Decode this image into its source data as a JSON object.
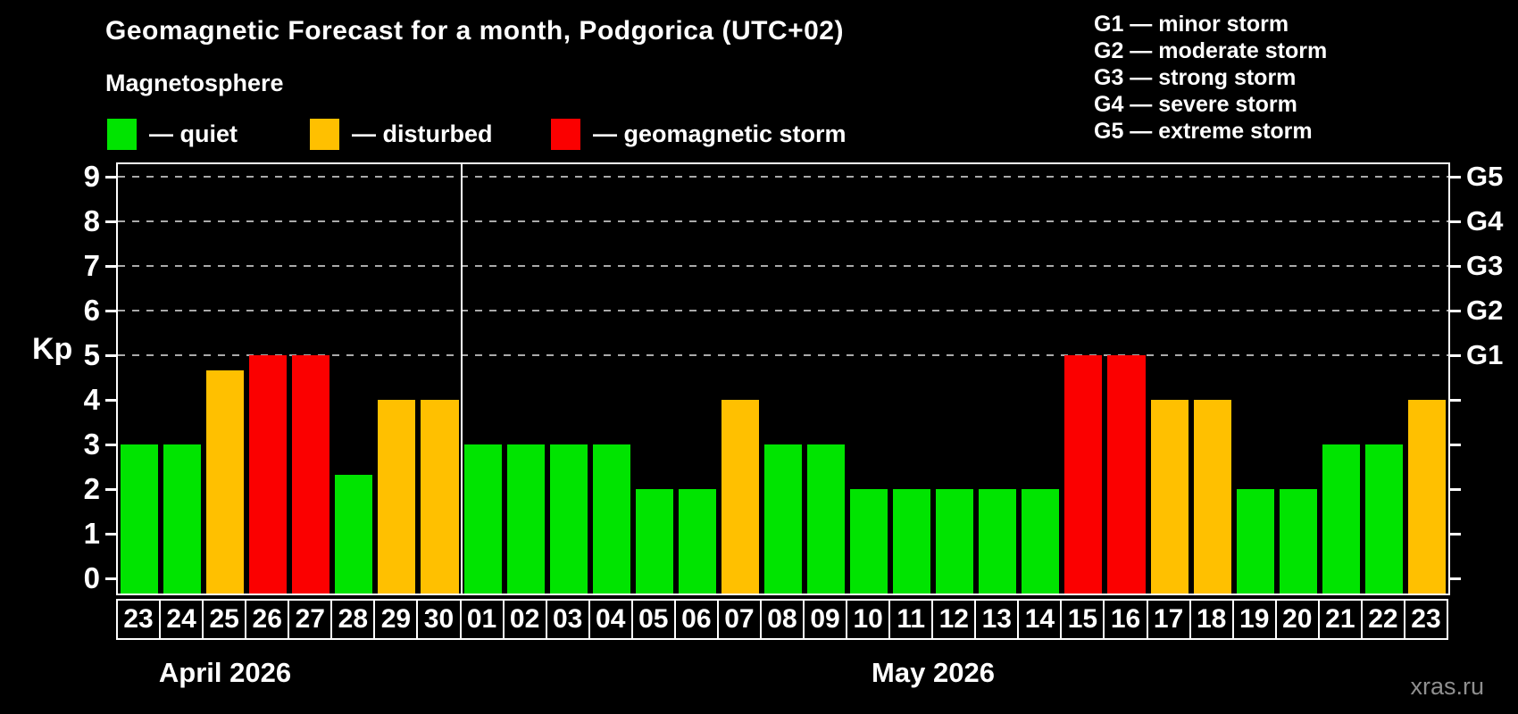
{
  "chart_data": {
    "type": "bar",
    "title": "Geomagnetic Forecast for a month, Podgorica (UTC+02)",
    "subtitle": "Magnetosphere",
    "watermark": "xras.ru",
    "kp_axis": {
      "label": "Kp",
      "min": 0,
      "max": 9,
      "ticks": [
        0,
        1,
        2,
        3,
        4,
        5,
        6,
        7,
        8,
        9
      ]
    },
    "g_axis": [
      {
        "code": "G1",
        "kp": 5
      },
      {
        "code": "G2",
        "kp": 6
      },
      {
        "code": "G3",
        "kp": 7
      },
      {
        "code": "G4",
        "kp": 8
      },
      {
        "code": "G5",
        "kp": 9
      }
    ],
    "gridlines_kp": [
      5,
      6,
      7,
      8,
      9
    ],
    "status_legend": [
      {
        "status": "quiet",
        "label": "— quiet",
        "color": "#00e400"
      },
      {
        "status": "disturbed",
        "label": "— disturbed",
        "color": "#ffc000"
      },
      {
        "status": "storm",
        "label": "— geomagnetic storm",
        "color": "#fb0000"
      }
    ],
    "g_legend": [
      "G1 — minor storm",
      "G2 — moderate storm",
      "G3 — strong storm",
      "G4 — severe storm",
      "G5 — extreme storm"
    ],
    "colors": {
      "quiet": "#00e400",
      "disturbed": "#ffc000",
      "storm": "#fb0000",
      "grid": "#aaaaaa",
      "frame": "#ffffff",
      "background": "#000000",
      "watermark": "#8f8f8f"
    },
    "months": [
      {
        "name": "April 2026",
        "bars": [
          {
            "day": "23",
            "kp": 3,
            "status": "quiet"
          },
          {
            "day": "24",
            "kp": 3,
            "status": "quiet"
          },
          {
            "day": "25",
            "kp": 4.67,
            "status": "disturbed"
          },
          {
            "day": "26",
            "kp": 5,
            "status": "storm"
          },
          {
            "day": "27",
            "kp": 5,
            "status": "storm"
          },
          {
            "day": "28",
            "kp": 2.33,
            "status": "quiet"
          },
          {
            "day": "29",
            "kp": 4,
            "status": "disturbed"
          },
          {
            "day": "30",
            "kp": 4,
            "status": "disturbed"
          }
        ]
      },
      {
        "name": "May 2026",
        "bars": [
          {
            "day": "01",
            "kp": 3,
            "status": "quiet"
          },
          {
            "day": "02",
            "kp": 3,
            "status": "quiet"
          },
          {
            "day": "03",
            "kp": 3,
            "status": "quiet"
          },
          {
            "day": "04",
            "kp": 3,
            "status": "quiet"
          },
          {
            "day": "05",
            "kp": 2,
            "status": "quiet"
          },
          {
            "day": "06",
            "kp": 2,
            "status": "quiet"
          },
          {
            "day": "07",
            "kp": 4,
            "status": "disturbed"
          },
          {
            "day": "08",
            "kp": 3,
            "status": "quiet"
          },
          {
            "day": "09",
            "kp": 3,
            "status": "quiet"
          },
          {
            "day": "10",
            "kp": 2,
            "status": "quiet"
          },
          {
            "day": "11",
            "kp": 2,
            "status": "quiet"
          },
          {
            "day": "12",
            "kp": 2,
            "status": "quiet"
          },
          {
            "day": "13",
            "kp": 2,
            "status": "quiet"
          },
          {
            "day": "14",
            "kp": 2,
            "status": "quiet"
          },
          {
            "day": "15",
            "kp": 5,
            "status": "storm"
          },
          {
            "day": "16",
            "kp": 5,
            "status": "storm"
          },
          {
            "day": "17",
            "kp": 4,
            "status": "disturbed"
          },
          {
            "day": "18",
            "kp": 4,
            "status": "disturbed"
          },
          {
            "day": "19",
            "kp": 2,
            "status": "quiet"
          },
          {
            "day": "20",
            "kp": 2,
            "status": "quiet"
          },
          {
            "day": "21",
            "kp": 3,
            "status": "quiet"
          },
          {
            "day": "22",
            "kp": 3,
            "status": "quiet"
          },
          {
            "day": "23",
            "kp": 4,
            "status": "disturbed"
          }
        ]
      }
    ]
  }
}
